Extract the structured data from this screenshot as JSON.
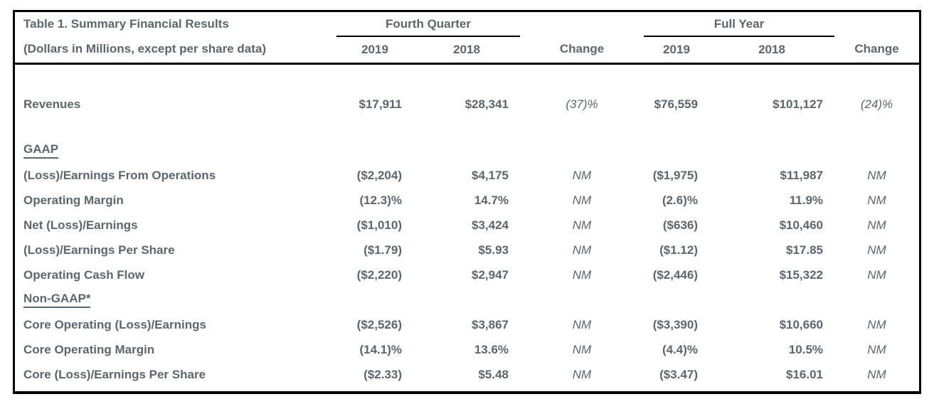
{
  "colors": {
    "text": "#5b6770",
    "border": "#000000",
    "background": "#ffffff"
  },
  "table": {
    "title": "Table 1. Summary Financial Results",
    "subtitle": "(Dollars in Millions, except per share data)",
    "groups": {
      "fourth_quarter": "Fourth Quarter",
      "full_year": "Full Year"
    },
    "col_headers": {
      "q4_2019": "2019",
      "q4_2018": "2018",
      "q4_change": "Change",
      "fy_2019": "2019",
      "fy_2018": "2018",
      "fy_change": "Change"
    },
    "rows": [
      {
        "type": "spacer",
        "height": 40
      },
      {
        "type": "data",
        "label": "Revenues",
        "values": [
          "$17,911",
          "$28,341",
          "(37)%",
          "$76,559",
          "$101,127",
          "(24)%"
        ]
      },
      {
        "type": "spacer",
        "height": 30
      },
      {
        "type": "section",
        "label": "GAAP"
      },
      {
        "type": "data",
        "label": "(Loss)/Earnings From Operations",
        "values": [
          "($2,204)",
          "$4,175",
          "NM",
          "($1,975)",
          "$11,987",
          "NM"
        ]
      },
      {
        "type": "data",
        "label": "Operating Margin",
        "values": [
          "(12.3)%",
          "14.7%",
          "NM",
          "(2.6)%",
          "11.9%",
          "NM"
        ]
      },
      {
        "type": "data",
        "label": "Net (Loss)/Earnings",
        "values": [
          "($1,010)",
          "$3,424",
          "NM",
          "($636)",
          "$10,460",
          "NM"
        ]
      },
      {
        "type": "data",
        "label": "(Loss)/Earnings Per Share",
        "values": [
          "($1.79)",
          "$5.93",
          "NM",
          "($1.12)",
          "$17.85",
          "NM"
        ]
      },
      {
        "type": "data",
        "label": "Operating Cash Flow",
        "values": [
          "($2,220)",
          "$2,947",
          "NM",
          "($2,446)",
          "$15,322",
          "NM"
        ]
      },
      {
        "type": "section",
        "label": "Non-GAAP*"
      },
      {
        "type": "data",
        "label": "Core Operating (Loss)/Earnings",
        "values": [
          "($2,526)",
          "$3,867",
          "NM",
          "($3,390)",
          "$10,660",
          "NM"
        ]
      },
      {
        "type": "data",
        "label": "Core Operating Margin",
        "values": [
          "(14.1)%",
          "13.6%",
          "NM",
          "(4.4)%",
          "10.5%",
          "NM"
        ]
      },
      {
        "type": "data",
        "label": "Core (Loss)/Earnings Per Share",
        "values": [
          "($2.33)",
          "$5.48",
          "NM",
          "($3.47)",
          "$16.01",
          "NM"
        ]
      }
    ]
  }
}
